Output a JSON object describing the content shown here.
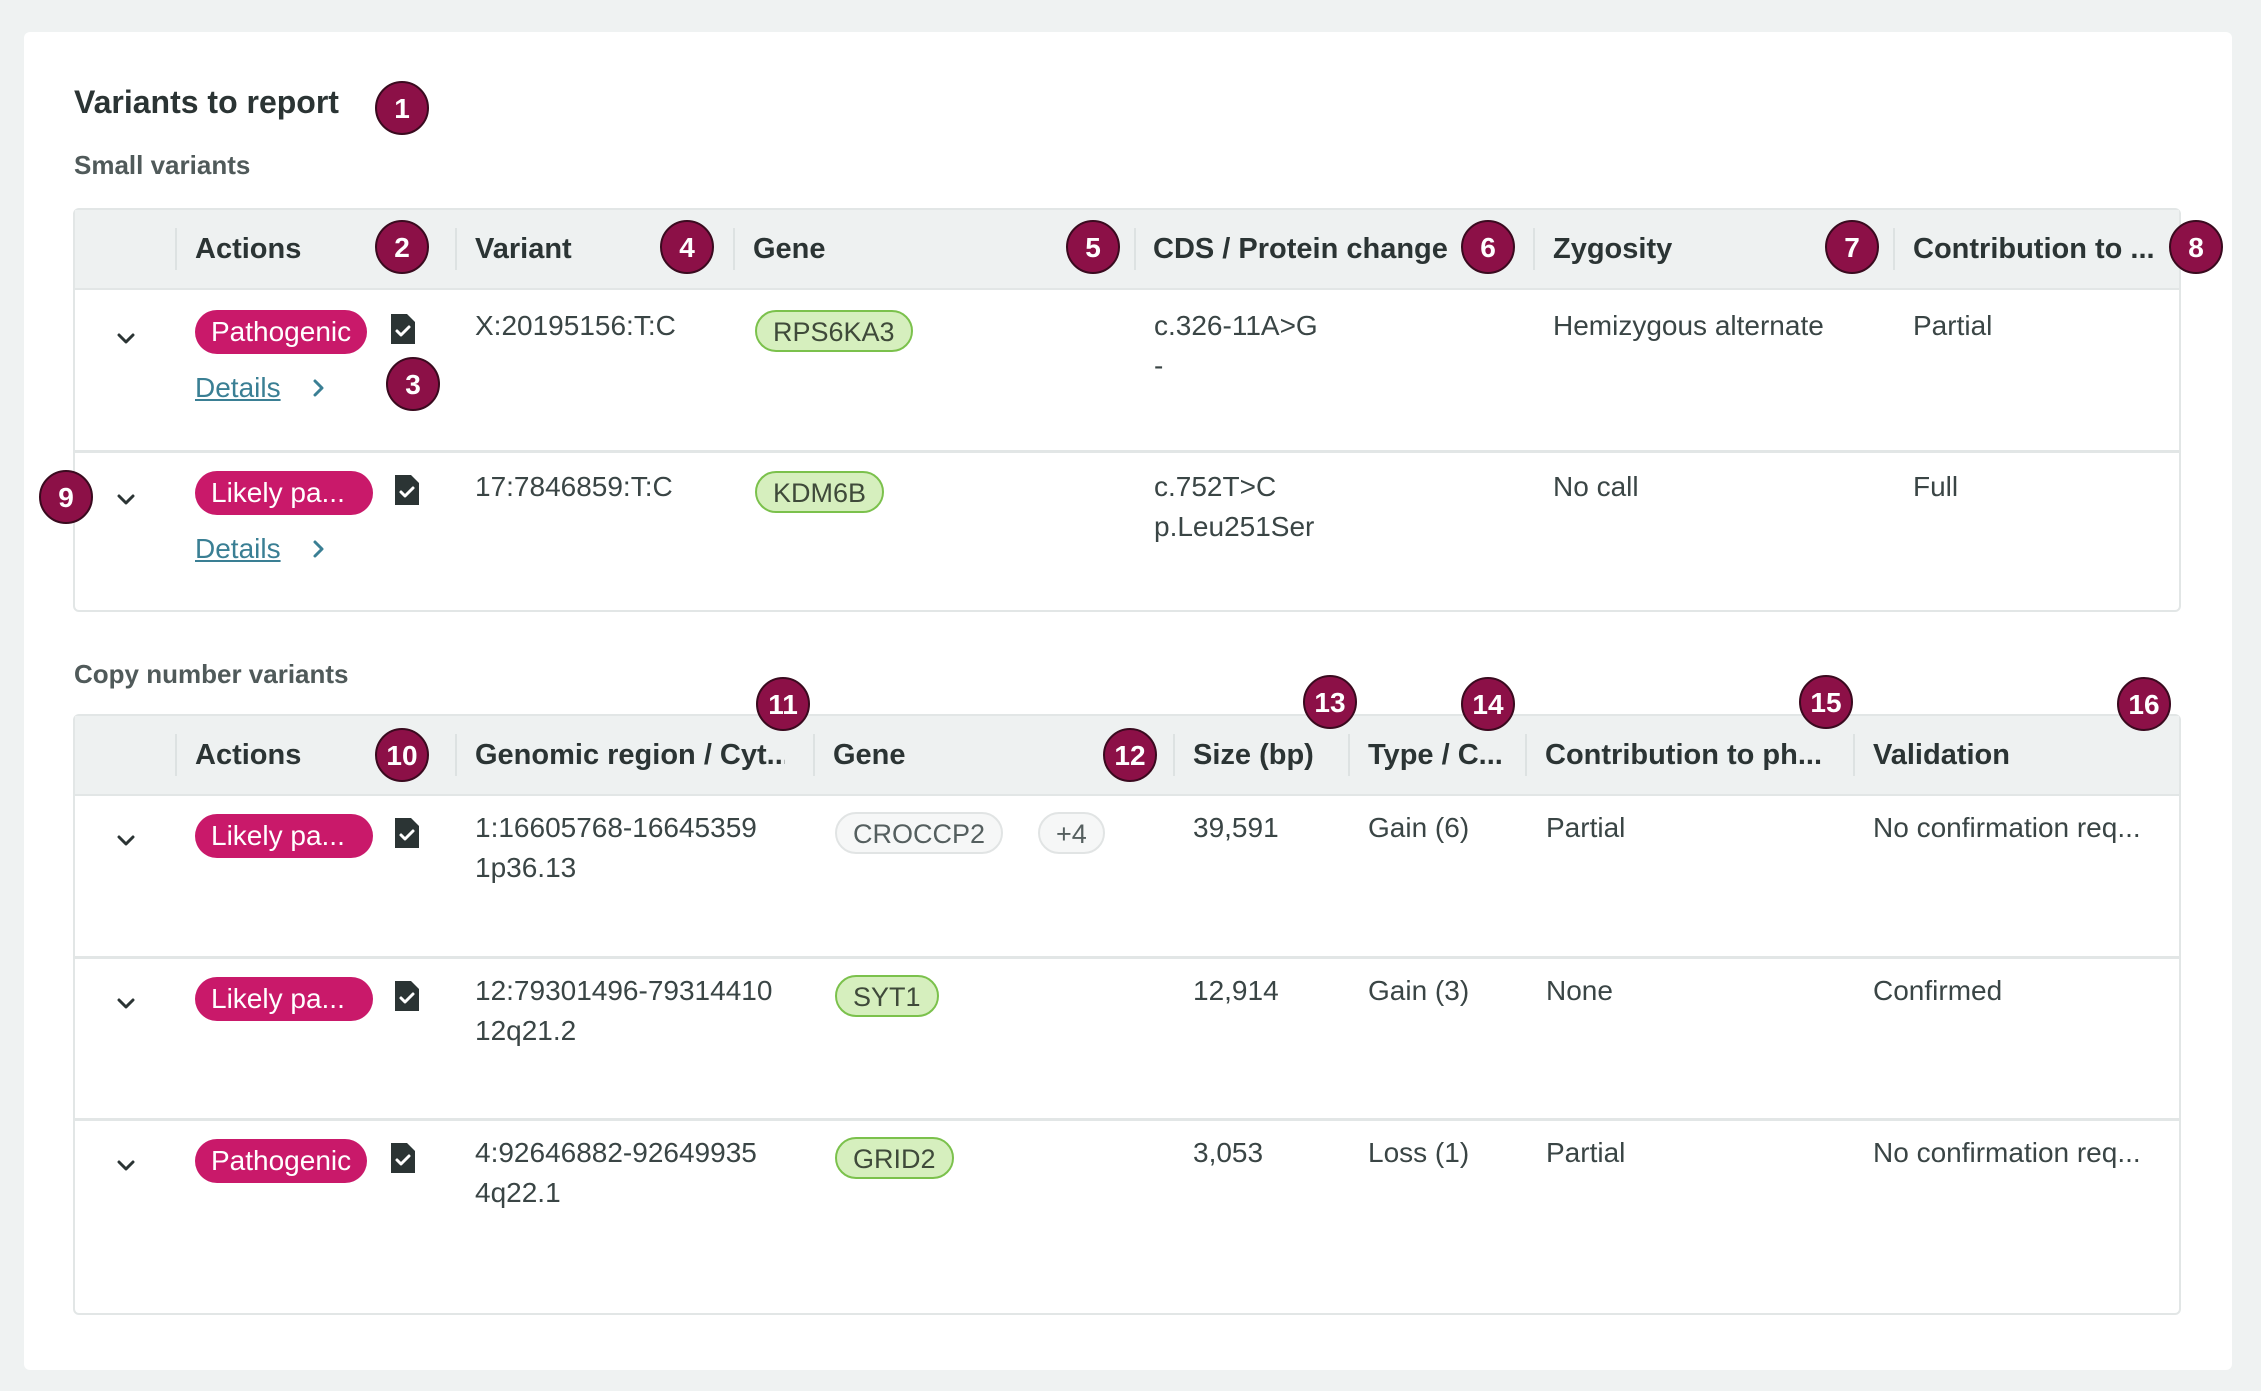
{
  "section_title": "Variants to report",
  "small_variants": {
    "title": "Small variants",
    "headers": [
      "Actions",
      "Variant",
      "Gene",
      "CDS / Protein change",
      "Zygosity",
      "Contribution to ..."
    ],
    "rows": [
      {
        "classification": "Pathogenic",
        "details": "Details",
        "variant": "X:20195156:T:C",
        "gene": "RPS6KA3",
        "cds": "c.326-11A>G",
        "protein": "-",
        "zygosity": "Hemizygous alternate",
        "contribution": "Partial"
      },
      {
        "classification": "Likely pa...",
        "details": "Details",
        "variant": "17:7846859:T:C",
        "gene": "KDM6B",
        "cds": "c.752T>C",
        "protein": "p.Leu251Ser",
        "zygosity": "No call",
        "contribution": "Full"
      }
    ]
  },
  "copy_number_variants": {
    "title": "Copy number variants",
    "headers": [
      "Actions",
      "Genomic region / Cyt...",
      "Gene",
      "Size (bp)",
      "Type / C...",
      "Contribution to ph...",
      "Validation"
    ],
    "rows": [
      {
        "classification": "Likely pa...",
        "region": "1:16605768-16645359",
        "cytoband": "1p36.13",
        "gene": "CROCCP2",
        "gene_more": "+4",
        "size": "39,591",
        "type": "Gain (6)",
        "contribution": "Partial",
        "validation": "No confirmation req..."
      },
      {
        "classification": "Likely pa...",
        "region": "12:79301496-79314410",
        "cytoband": "12q21.2",
        "gene": "SYT1",
        "size": "12,914",
        "type": "Gain (3)",
        "contribution": "None",
        "validation": "Confirmed"
      },
      {
        "classification": "Pathogenic",
        "region": "4:92646882-92649935",
        "cytoband": "4q22.1",
        "gene": "GRID2",
        "size": "3,053",
        "type": "Loss (1)",
        "contribution": "Partial",
        "validation": "No confirmation req..."
      }
    ]
  },
  "annotations": [
    "1",
    "2",
    "3",
    "4",
    "5",
    "6",
    "7",
    "8",
    "9",
    "10",
    "11",
    "12",
    "13",
    "14",
    "15",
    "16"
  ],
  "colors": {
    "pill": "#c9196a",
    "badge": "#8c1047",
    "gene_green_bg": "#d6efbe",
    "gene_green_border": "#7bc14c",
    "link": "#3a7f94"
  },
  "icons": [
    "chevron-down-icon",
    "document-check-icon",
    "chevron-right-icon"
  ]
}
